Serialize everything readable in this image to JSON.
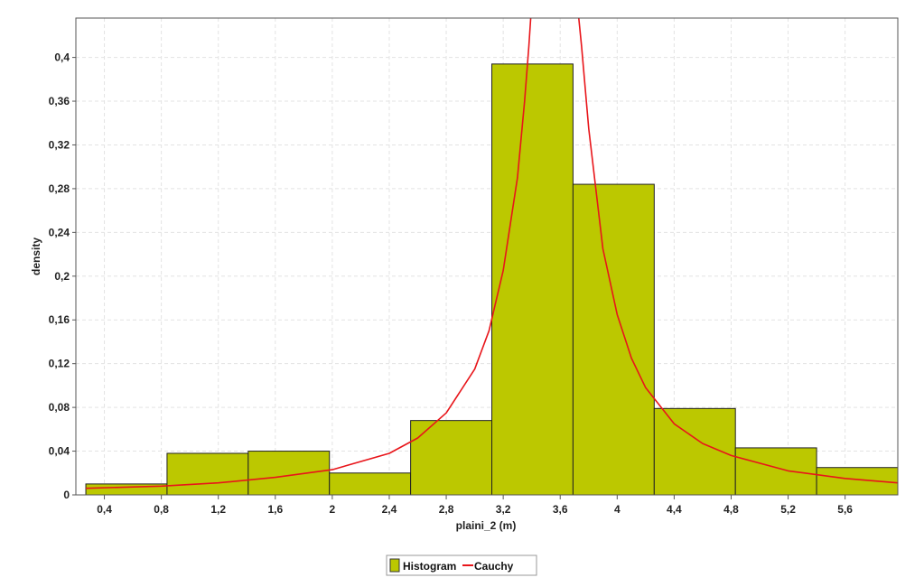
{
  "chart_data": {
    "type": "bar",
    "xlabel": "plaini_2 (m)",
    "ylabel": "density",
    "xlim": [
      0.2,
      5.97
    ],
    "ylim": [
      0,
      0.436
    ],
    "x_ticks": [
      "0,4",
      "0,8",
      "1,2",
      "1,6",
      "2",
      "2,4",
      "2,8",
      "3,2",
      "3,6",
      "4",
      "4,4",
      "4,8",
      "5,2",
      "5,6"
    ],
    "x_tick_values": [
      0.4,
      0.8,
      1.2,
      1.6,
      2.0,
      2.4,
      2.8,
      3.2,
      3.6,
      4.0,
      4.4,
      4.8,
      5.2,
      5.6
    ],
    "y_ticks": [
      "0",
      "0,04",
      "0,08",
      "0,12",
      "0,16",
      "0,2",
      "0,24",
      "0,28",
      "0,32",
      "0,36",
      "0,4"
    ],
    "y_tick_values": [
      0,
      0.04,
      0.08,
      0.12,
      0.16,
      0.2,
      0.24,
      0.28,
      0.32,
      0.36,
      0.4
    ],
    "grid": true,
    "legend_position": "bottom-center",
    "series": [
      {
        "name": "Histogram",
        "kind": "histogram",
        "color": "#bcc800",
        "bins": [
          {
            "x0": 0.27,
            "x1": 0.84,
            "value": 0.01
          },
          {
            "x0": 0.84,
            "x1": 1.41,
            "value": 0.038
          },
          {
            "x0": 1.41,
            "x1": 1.98,
            "value": 0.04
          },
          {
            "x0": 1.98,
            "x1": 2.55,
            "value": 0.02
          },
          {
            "x0": 2.55,
            "x1": 3.12,
            "value": 0.068
          },
          {
            "x0": 3.12,
            "x1": 3.69,
            "value": 0.394
          },
          {
            "x0": 3.69,
            "x1": 4.26,
            "value": 0.284
          },
          {
            "x0": 4.26,
            "x1": 4.83,
            "value": 0.079
          },
          {
            "x0": 4.83,
            "x1": 5.4,
            "value": 0.043
          },
          {
            "x0": 5.4,
            "x1": 5.97,
            "value": 0.025
          }
        ]
      },
      {
        "name": "Cauchy",
        "kind": "line",
        "color": "#e8151a",
        "x": [
          0.27,
          0.8,
          1.2,
          1.6,
          2.0,
          2.4,
          2.6,
          2.8,
          3.0,
          3.1,
          3.2,
          3.3,
          3.35,
          3.38,
          3.4,
          3.5,
          3.7,
          3.72,
          3.75,
          3.8,
          3.9,
          4.0,
          4.1,
          4.2,
          4.4,
          4.6,
          4.8,
          5.2,
          5.6,
          5.97
        ],
        "y": [
          0.006,
          0.008,
          0.011,
          0.016,
          0.023,
          0.038,
          0.052,
          0.075,
          0.115,
          0.15,
          0.205,
          0.29,
          0.36,
          0.41,
          0.45,
          0.7,
          0.7,
          0.45,
          0.41,
          0.335,
          0.225,
          0.165,
          0.125,
          0.098,
          0.065,
          0.047,
          0.036,
          0.022,
          0.015,
          0.011
        ]
      }
    ]
  }
}
